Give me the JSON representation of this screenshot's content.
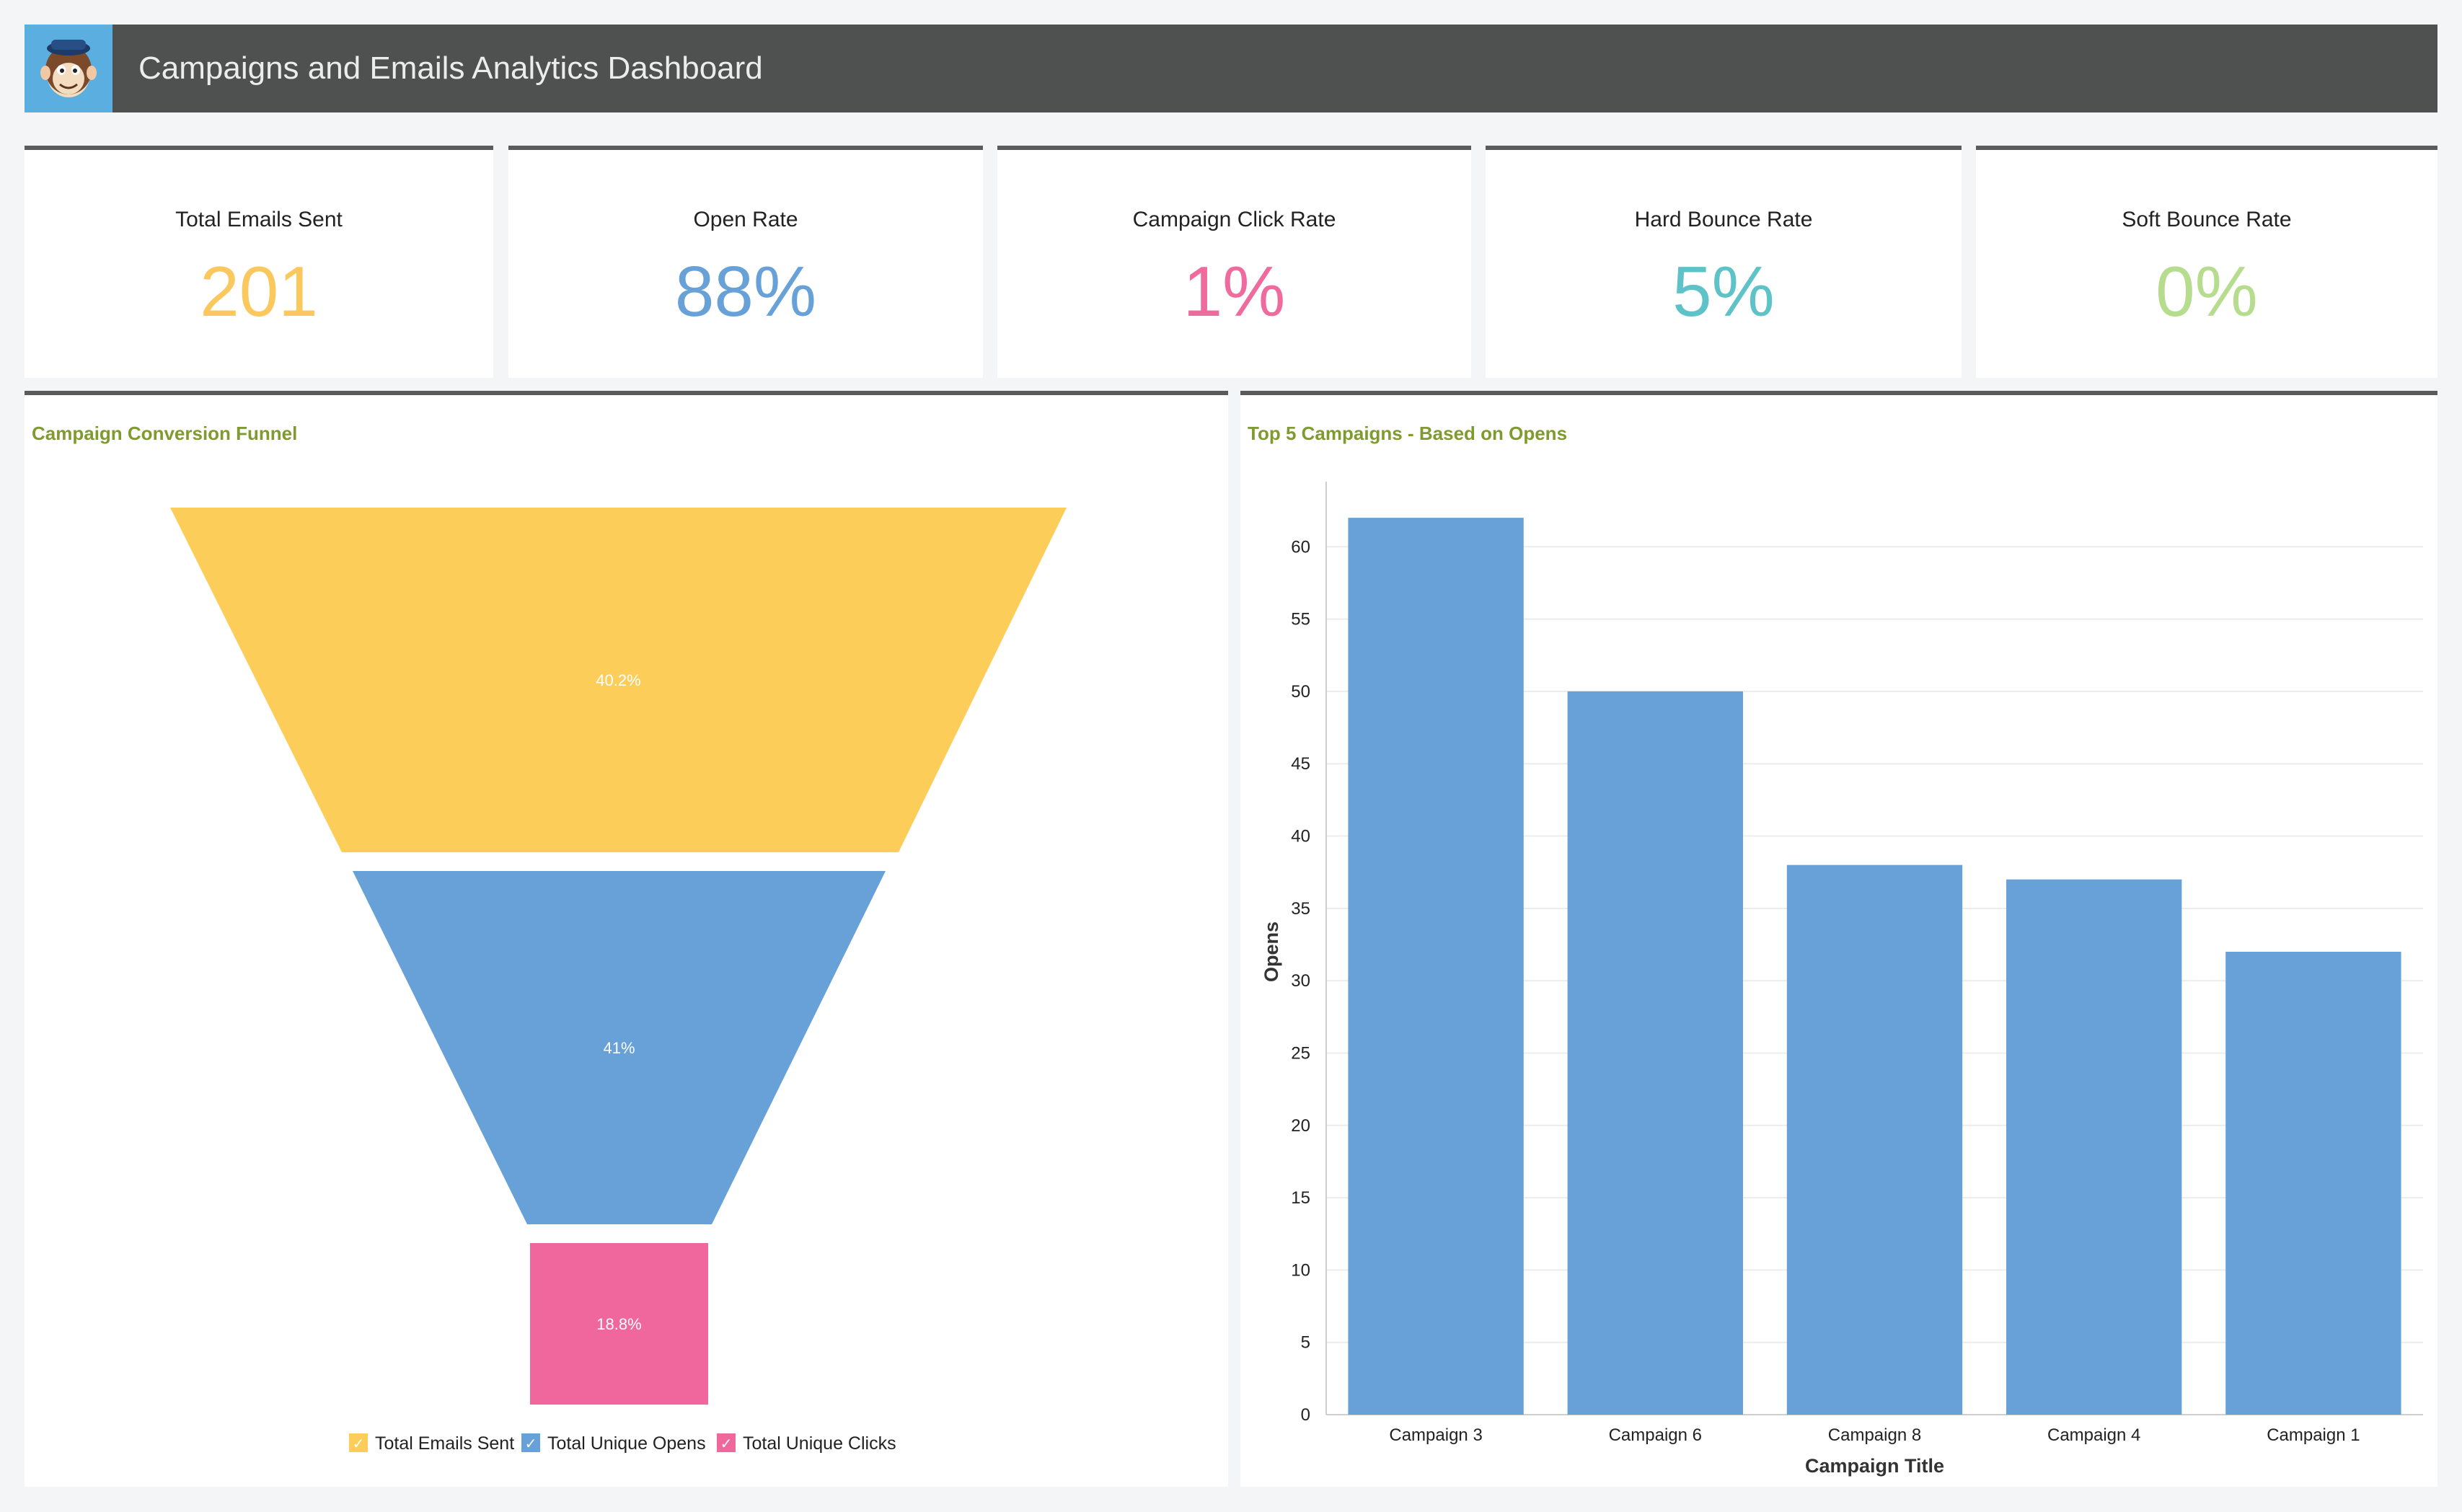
{
  "header": {
    "title": "Campaigns and Emails Analytics Dashboard",
    "logo_icon": "mailchimp-monkey-icon"
  },
  "kpis": [
    {
      "label": "Total Emails Sent",
      "value": "201",
      "color": "#fbc85e"
    },
    {
      "label": "Open Rate",
      "value": "88%",
      "color": "#67a1d8"
    },
    {
      "label": "Campaign Click Rate",
      "value": "1%",
      "color": "#ef6b9e"
    },
    {
      "label": "Hard Bounce Rate",
      "value": "5%",
      "color": "#5ec3c8"
    },
    {
      "label": "Soft Bounce Rate",
      "value": "0%",
      "color": "#b6dc8e"
    }
  ],
  "chart_data": [
    {
      "type": "funnel",
      "title": "Campaign Conversion Funnel",
      "stages": [
        {
          "name": "Total Emails Sent",
          "label": "40.2%",
          "color": "#fdcd5a"
        },
        {
          "name": "Total Unique Opens",
          "label": "41%",
          "color": "#67a1d8"
        },
        {
          "name": "Total Unique Clicks",
          "label": "18.8%",
          "color": "#f0679d"
        }
      ],
      "legend_position": "bottom-center",
      "legend_check": "✓"
    },
    {
      "type": "bar",
      "title": "Top 5 Campaigns - Based on Opens",
      "categories": [
        "Campaign 3",
        "Campaign 6",
        "Campaign 8",
        "Campaign 4",
        "Campaign 1"
      ],
      "values": [
        62,
        50,
        38,
        37,
        32
      ],
      "xlabel": "Campaign Title",
      "ylabel": "Opens",
      "ylim": [
        0,
        64
      ],
      "yticks": [
        0,
        5,
        10,
        15,
        20,
        25,
        30,
        35,
        40,
        45,
        50,
        55,
        60
      ],
      "grid": true,
      "color": "#67a1d8"
    }
  ]
}
